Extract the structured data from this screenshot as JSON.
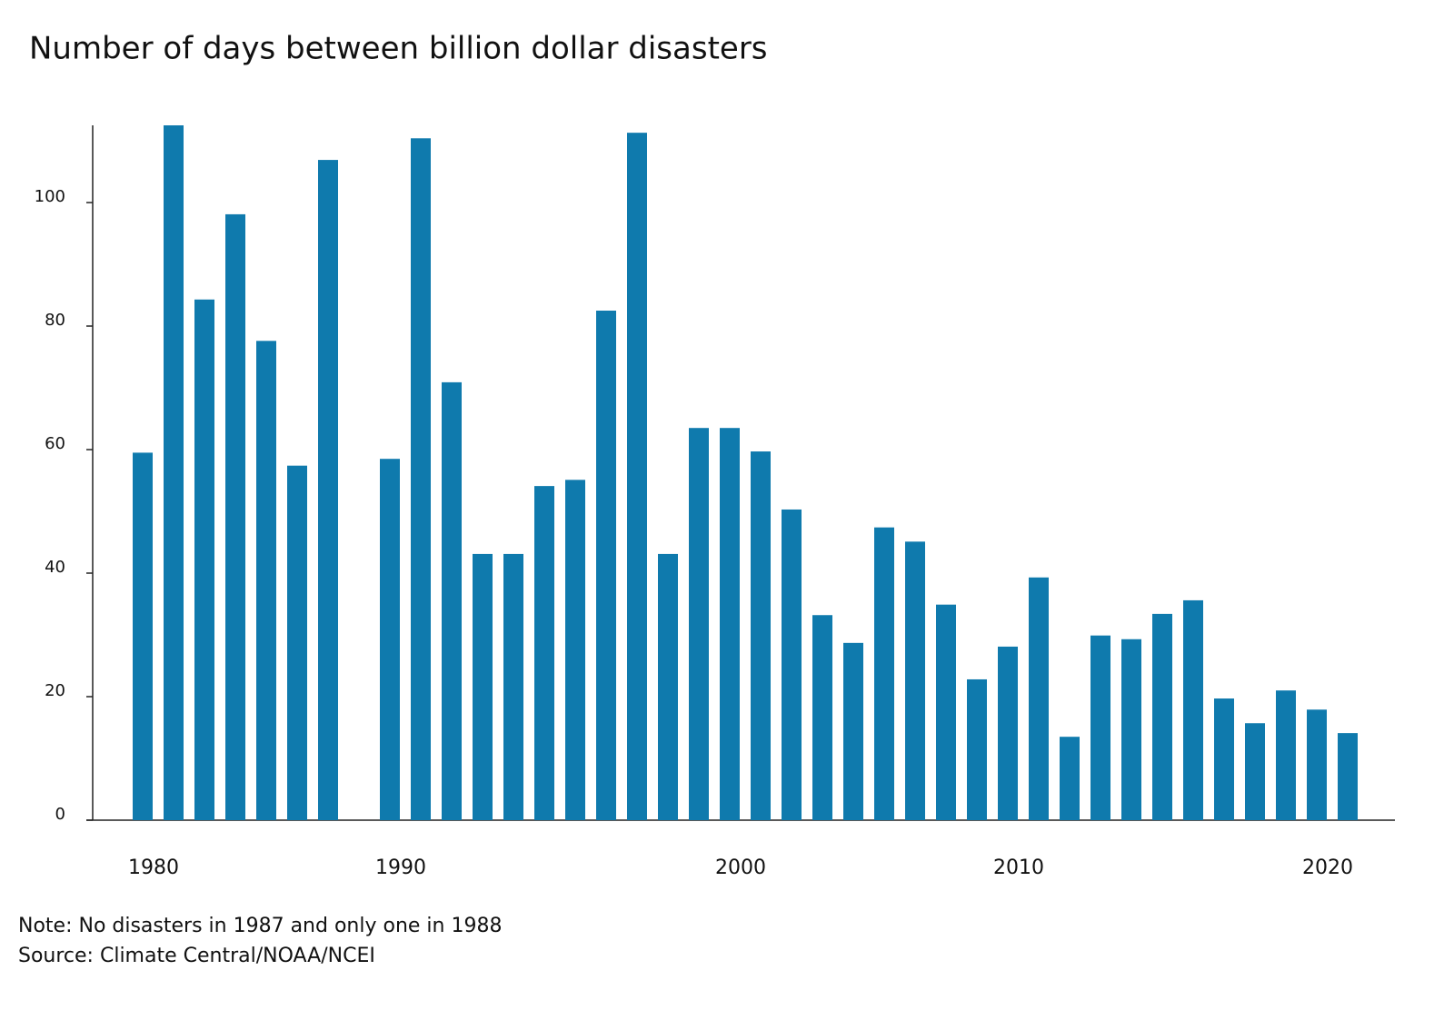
{
  "chart_data": {
    "type": "bar",
    "title": "Number of days between billion dollar disasters",
    "categories": [
      "1980",
      null,
      null,
      null,
      null,
      null,
      null,
      null,
      "1990",
      null,
      null,
      null,
      null,
      null,
      null,
      null,
      null,
      null,
      null,
      "2000",
      null,
      null,
      null,
      null,
      null,
      null,
      null,
      null,
      "2010",
      null,
      null,
      null,
      null,
      null,
      null,
      null,
      null,
      null,
      "2020",
      null
    ],
    "values": [
      59.5,
      112.5,
      84.3,
      98.1,
      77.6,
      57.4,
      106.9,
      null,
      58.5,
      110.4,
      70.9,
      43.1,
      43.1,
      54.1,
      55.1,
      82.5,
      111.3,
      43.1,
      63.5,
      63.5,
      59.7,
      50.3,
      33.2,
      28.7,
      47.4,
      45.1,
      34.9,
      22.8,
      28.1,
      39.3,
      13.5,
      29.9,
      29.3,
      33.4,
      35.6,
      19.7,
      15.7,
      21.0,
      17.9,
      14.1
    ],
    "color": "#0f7aad",
    "ylim": [
      0,
      112.5
    ],
    "yticks": [
      0,
      20,
      40,
      60,
      80,
      100
    ],
    "grid": false,
    "notes": [
      "Note: No disasters in 1987 and only one in 1988",
      "Source: Climate Central/NOAA/NCEI"
    ]
  }
}
